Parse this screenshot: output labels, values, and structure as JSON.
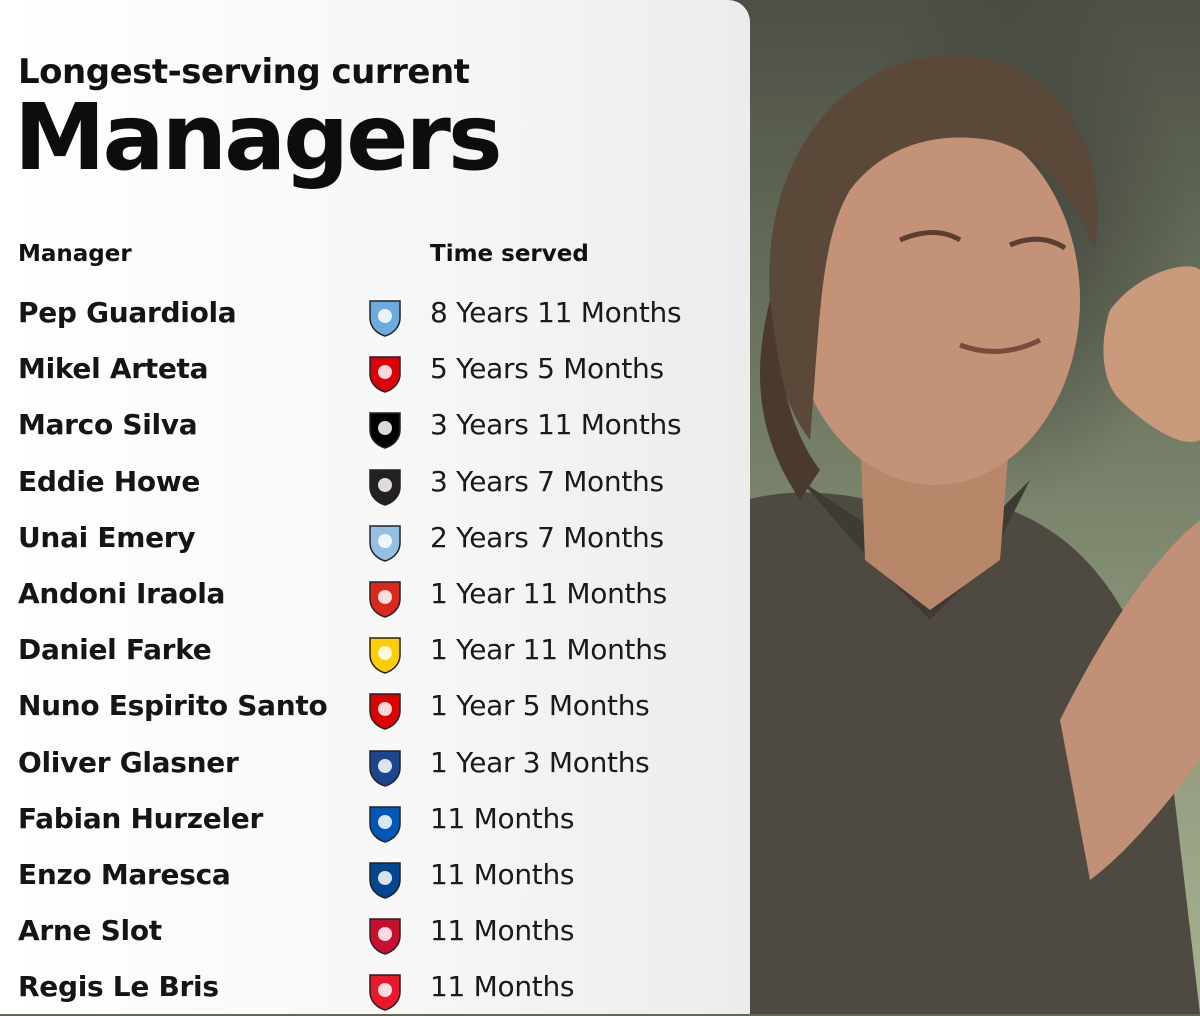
{
  "header": {
    "subtitle": "Longest-serving current",
    "title": "Managers"
  },
  "columns": {
    "manager": "Manager",
    "time": "Time served"
  },
  "rows": [
    {
      "name": "Pep Guardiola",
      "time": "8 Years 11 Months",
      "crest": "man-city-crest-icon",
      "color": "#6cabdd"
    },
    {
      "name": "Mikel Arteta",
      "time": "5 Years 5 Months",
      "crest": "arsenal-crest-icon",
      "color": "#db0007"
    },
    {
      "name": "Marco Silva",
      "time": "3 Years 11 Months",
      "crest": "fulham-crest-icon",
      "color": "#000000"
    },
    {
      "name": "Eddie Howe",
      "time": "3 Years 7 Months",
      "crest": "newcastle-crest-icon",
      "color": "#241f20"
    },
    {
      "name": "Unai Emery",
      "time": "2 Years 7 Months",
      "crest": "aston-villa-crest-icon",
      "color": "#95bfe5"
    },
    {
      "name": "Andoni Iraola",
      "time": "1 Year 11 Months",
      "crest": "bournemouth-crest-icon",
      "color": "#da291c"
    },
    {
      "name": "Daniel Farke",
      "time": "1 Year 11 Months",
      "crest": "leeds-crest-icon",
      "color": "#ffcd00"
    },
    {
      "name": "Nuno Espirito Santo",
      "time": "1 Year 5 Months",
      "crest": "nottingham-forest-crest-icon",
      "color": "#dd0000"
    },
    {
      "name": "Oliver Glasner",
      "time": "1 Year 3 Months",
      "crest": "crystal-palace-crest-icon",
      "color": "#1b458f"
    },
    {
      "name": "Fabian Hurzeler",
      "time": "11 Months",
      "crest": "brighton-crest-icon",
      "color": "#0057b8"
    },
    {
      "name": "Enzo Maresca",
      "time": "11 Months",
      "crest": "chelsea-crest-icon",
      "color": "#034694"
    },
    {
      "name": "Arne Slot",
      "time": "11 Months",
      "crest": "liverpool-crest-icon",
      "color": "#c8102e"
    },
    {
      "name": "Regis Le Bris",
      "time": "11 Months",
      "crest": "sunderland-crest-icon",
      "color": "#eb172b"
    }
  ]
}
